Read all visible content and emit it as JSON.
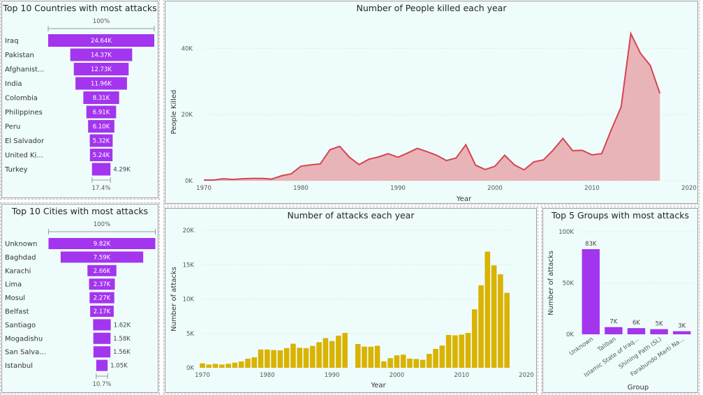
{
  "chart_data": [
    {
      "type": "bar",
      "subtype": "funnel",
      "title": "Top 10 Countries with most attacks",
      "top_percent_label": "100%",
      "bottom_percent_label": "17.4%",
      "bar_color": "#a335ee",
      "categories": [
        "Iraq",
        "Pakistan",
        "Afghanist...",
        "India",
        "Colombia",
        "Philippines",
        "Peru",
        "El Salvador",
        "United Ki...",
        "Turkey"
      ],
      "values": [
        24640,
        14370,
        12730,
        11960,
        8310,
        6910,
        6100,
        5320,
        5240,
        4290
      ],
      "value_labels": [
        "24.64K",
        "14.37K",
        "12.73K",
        "11.96K",
        "8.31K",
        "6.91K",
        "6.10K",
        "5.32K",
        "5.24K",
        "4.29K"
      ]
    },
    {
      "type": "area",
      "title": "Number of People killed each year",
      "xlabel": "Year",
      "ylabel": "People Killed",
      "xlim": [
        1970,
        2020
      ],
      "ylim": [
        0,
        50000
      ],
      "x_ticks": [
        "1970",
        "1980",
        "1990",
        "2000",
        "2010",
        "2020"
      ],
      "y_ticks": [
        "0K",
        "20K",
        "40K"
      ],
      "line_color": "#d64550",
      "fill_color": "#e8b4b8",
      "x": [
        1970,
        1971,
        1972,
        1973,
        1974,
        1975,
        1976,
        1977,
        1978,
        1979,
        1980,
        1981,
        1982,
        1983,
        1984,
        1985,
        1986,
        1987,
        1988,
        1989,
        1990,
        1991,
        1992,
        1993,
        1994,
        1995,
        1996,
        1997,
        1998,
        1999,
        2000,
        2001,
        2002,
        2003,
        2004,
        2005,
        2006,
        2007,
        2008,
        2009,
        2010,
        2011,
        2012,
        2013,
        2014,
        2015,
        2016,
        2017
      ],
      "values": [
        200,
        200,
        600,
        400,
        600,
        700,
        700,
        500,
        1500,
        2100,
        4400,
        4800,
        5100,
        9400,
        10400,
        7100,
        4900,
        6500,
        7200,
        8200,
        7100,
        8400,
        9800,
        8800,
        7700,
        6100,
        6900,
        10900,
        4700,
        3400,
        4400,
        7700,
        4800,
        3300,
        5700,
        6300,
        9300,
        12800,
        9100,
        9200,
        7800,
        8200,
        15500,
        22300,
        44500,
        38500,
        34900,
        26400
      ]
    },
    {
      "type": "bar",
      "subtype": "funnel",
      "title": "Top 10 Cities with most attacks",
      "top_percent_label": "100%",
      "bottom_percent_label": "10.7%",
      "bar_color": "#a335ee",
      "categories": [
        "Unknown",
        "Baghdad",
        "Karachi",
        "Lima",
        "Mosul",
        "Belfast",
        "Santiago",
        "Mogadishu",
        "San Salva...",
        "Istanbul"
      ],
      "values": [
        9820,
        7590,
        2660,
        2370,
        2270,
        2170,
        1620,
        1580,
        1560,
        1050
      ],
      "value_labels": [
        "9.82K",
        "7.59K",
        "2.66K",
        "2.37K",
        "2.27K",
        "2.17K",
        "1.62K",
        "1.58K",
        "1.56K",
        "1.05K"
      ]
    },
    {
      "type": "bar",
      "title": "Number of attacks each year",
      "xlabel": "Year",
      "ylabel": "Number of attacks",
      "xlim": [
        1970,
        2020
      ],
      "ylim": [
        0,
        20000
      ],
      "x_ticks": [
        "1970",
        "1980",
        "1990",
        "2000",
        "2010",
        "2020"
      ],
      "y_ticks": [
        "0K",
        "5K",
        "10K",
        "15K",
        "20K"
      ],
      "bar_color": "#d9b300",
      "x": [
        1970,
        1971,
        1972,
        1973,
        1974,
        1975,
        1976,
        1977,
        1978,
        1979,
        1980,
        1981,
        1982,
        1983,
        1984,
        1985,
        1986,
        1987,
        1988,
        1989,
        1990,
        1991,
        1992,
        1994,
        1995,
        1996,
        1997,
        1998,
        1999,
        2000,
        2001,
        2002,
        2003,
        2004,
        2005,
        2006,
        2007,
        2008,
        2009,
        2010,
        2011,
        2012,
        2013,
        2014,
        2015,
        2016,
        2017
      ],
      "values": [
        650,
        470,
        570,
        470,
        580,
        740,
        920,
        1320,
        1530,
        2660,
        2660,
        2590,
        2540,
        2870,
        3500,
        2920,
        2860,
        3180,
        3720,
        4320,
        3890,
        4680,
        5070,
        3460,
        3080,
        3060,
        3200,
        930,
        1400,
        1810,
        1910,
        1330,
        1280,
        1160,
        2020,
        2740,
        3240,
        4780,
        4720,
        4820,
        5070,
        8500,
        12000,
        16900,
        14900,
        13600,
        10900
      ]
    },
    {
      "type": "bar",
      "title": "Top 5 Groups with most attacks",
      "xlabel": "Group",
      "ylabel": "Number of attacks",
      "ylim": [
        0,
        100000
      ],
      "y_ticks": [
        "0K",
        "50K",
        "100K"
      ],
      "bar_color": "#a335ee",
      "categories": [
        "Unknown",
        "Taliban",
        "Islamic State of Iraq...",
        "Shining Path (SL)",
        "Farabundo Marti Na..."
      ],
      "values": [
        83000,
        7000,
        6000,
        5000,
        3000
      ],
      "value_labels": [
        "83K",
        "7K",
        "6K",
        "5K",
        "3K"
      ]
    }
  ]
}
